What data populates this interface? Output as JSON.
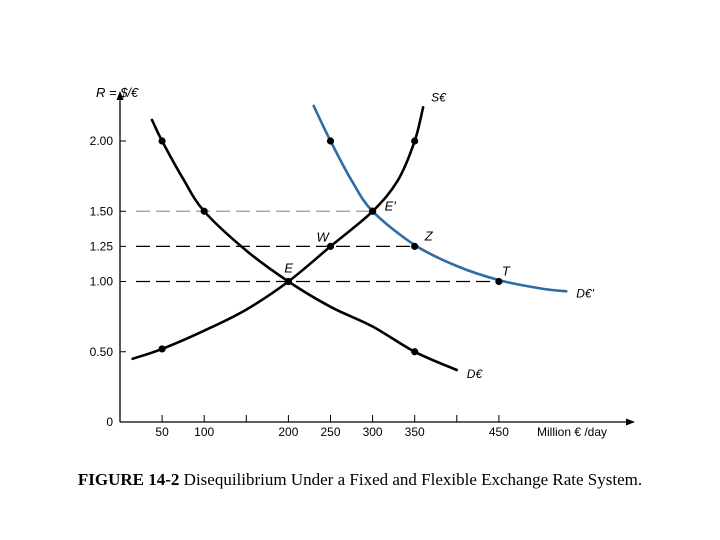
{
  "chart_data": {
    "type": "line",
    "ylabel": "R = $/€",
    "xlabel": "Million € /day",
    "xlim": [
      0,
      490
    ],
    "ylim": [
      0,
      2.25
    ],
    "x_ticks": [
      50,
      100,
      200,
      250,
      300,
      350,
      450
    ],
    "x_tick_labels": [
      "50",
      "100",
      "200",
      "250",
      "300",
      "350",
      "450"
    ],
    "x_minor_ticks": [
      150,
      400
    ],
    "y_ticks": [
      0,
      0.5,
      1.0,
      1.25,
      1.5,
      2.0
    ],
    "y_tick_labels": [
      "0",
      "0.50",
      "1.00",
      "1.25",
      "1.50",
      "2.00"
    ],
    "series": [
      {
        "name": "S€",
        "color": "#000000",
        "curve": [
          [
            15,
            0.45
          ],
          [
            50,
            0.52
          ],
          [
            100,
            0.65
          ],
          [
            150,
            0.8
          ],
          [
            200,
            1.0
          ],
          [
            250,
            1.25
          ],
          [
            300,
            1.5
          ],
          [
            330,
            1.72
          ],
          [
            350,
            2.0
          ],
          [
            360,
            2.24
          ]
        ],
        "points": [
          [
            50,
            0.52
          ],
          [
            200,
            1.0
          ],
          [
            250,
            1.25
          ],
          [
            300,
            1.5
          ],
          [
            350,
            2.0
          ]
        ]
      },
      {
        "name": "D€",
        "color": "#000000",
        "curve": [
          [
            38,
            2.15
          ],
          [
            50,
            2.0
          ],
          [
            75,
            1.73
          ],
          [
            100,
            1.5
          ],
          [
            150,
            1.22
          ],
          [
            200,
            1.0
          ],
          [
            250,
            0.82
          ],
          [
            300,
            0.68
          ],
          [
            350,
            0.5
          ],
          [
            400,
            0.37
          ]
        ],
        "points": [
          [
            50,
            2.0
          ],
          [
            100,
            1.5
          ],
          [
            200,
            1.0
          ],
          [
            350,
            0.5
          ]
        ]
      },
      {
        "name": "D€'",
        "color": "#2e6da4",
        "curve": [
          [
            230,
            2.25
          ],
          [
            250,
            2.0
          ],
          [
            275,
            1.72
          ],
          [
            300,
            1.5
          ],
          [
            350,
            1.26
          ],
          [
            400,
            1.11
          ],
          [
            450,
            1.01
          ],
          [
            500,
            0.95
          ],
          [
            530,
            0.93
          ]
        ],
        "points": [
          [
            250,
            2.0
          ],
          [
            300,
            1.5
          ],
          [
            350,
            1.25
          ],
          [
            450,
            1.0
          ]
        ]
      }
    ],
    "reference_lines": [
      {
        "y": 1.5,
        "x_end": 300,
        "color": "#999999"
      },
      {
        "y": 1.25,
        "x_end": 350,
        "color": "#000000"
      },
      {
        "y": 1.0,
        "x_end": 450,
        "color": "#000000"
      }
    ],
    "annotations": [
      {
        "text": "E",
        "x": 200,
        "y": 1.0
      },
      {
        "text": "E'",
        "x": 300,
        "y": 1.5
      },
      {
        "text": "W",
        "x": 250,
        "y": 1.25
      },
      {
        "text": "Z",
        "x": 350,
        "y": 1.25
      },
      {
        "text": "T",
        "x": 450,
        "y": 1.0
      }
    ]
  },
  "caption": {
    "label": "FIGURE 14-2",
    "text": " Disequilibrium Under a Fixed and Flexible Exchange Rate System."
  }
}
